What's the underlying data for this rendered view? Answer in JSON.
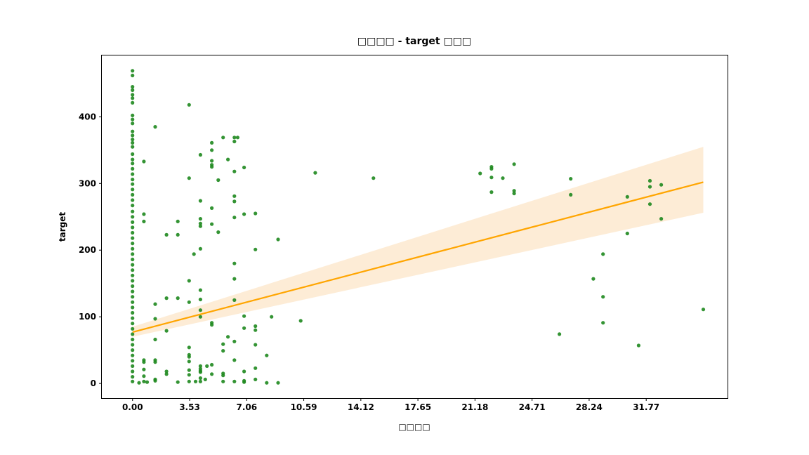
{
  "chart_data": {
    "type": "scatter",
    "title": "□□□□ - target □□□",
    "xlabel": "□□□□",
    "ylabel": "target",
    "xlim": [
      -1.9,
      36.8
    ],
    "ylim": [
      -22,
      492
    ],
    "x_ticks": [
      0.0,
      3.53,
      7.06,
      10.59,
      14.12,
      17.65,
      21.18,
      24.71,
      28.24,
      31.77
    ],
    "x_tick_labels": [
      "0.00",
      "3.53",
      "7.06",
      "10.59",
      "14.12",
      "17.65",
      "21.18",
      "24.71",
      "28.24",
      "31.77"
    ],
    "y_ticks": [
      0,
      100,
      200,
      300,
      400
    ],
    "y_tick_labels": [
      "0",
      "100",
      "200",
      "300",
      "400"
    ],
    "grid": false,
    "colors": {
      "points": "#1e881e",
      "regression_line": "#ffa500",
      "confidence_band": "#fde9cf"
    },
    "regression": {
      "x": [
        0.0,
        35.3
      ],
      "y": [
        77,
        302
      ],
      "ci_lower": [
        70,
        256
      ],
      "ci_upper": [
        85,
        355
      ]
    },
    "series": [
      {
        "points": [
          [
            0,
            469
          ],
          [
            0,
            462
          ],
          [
            0,
            445
          ],
          [
            0,
            440
          ],
          [
            0,
            433
          ],
          [
            0,
            428
          ],
          [
            0,
            421
          ],
          [
            0,
            402
          ],
          [
            0,
            396
          ],
          [
            0,
            390
          ],
          [
            0,
            378
          ],
          [
            0,
            372
          ],
          [
            0,
            366
          ],
          [
            0,
            361
          ],
          [
            0,
            355
          ],
          [
            0,
            344
          ],
          [
            0,
            336
          ],
          [
            0,
            330
          ],
          [
            0,
            322
          ],
          [
            0,
            314
          ],
          [
            0,
            306
          ],
          [
            0,
            299
          ],
          [
            0,
            291
          ],
          [
            0,
            283
          ],
          [
            0,
            275
          ],
          [
            0,
            267
          ],
          [
            0,
            258
          ],
          [
            0,
            250
          ],
          [
            0,
            242
          ],
          [
            0,
            234
          ],
          [
            0,
            226
          ],
          [
            0,
            218
          ],
          [
            0,
            210
          ],
          [
            0,
            202
          ],
          [
            0,
            194
          ],
          [
            0,
            186
          ],
          [
            0,
            178
          ],
          [
            0,
            170
          ],
          [
            0,
            162
          ],
          [
            0,
            154
          ],
          [
            0,
            146
          ],
          [
            0,
            138
          ],
          [
            0,
            130
          ],
          [
            0,
            122
          ],
          [
            0,
            114
          ],
          [
            0,
            106
          ],
          [
            0,
            98
          ],
          [
            0,
            90
          ],
          [
            0,
            82
          ],
          [
            0,
            74
          ],
          [
            0,
            66
          ],
          [
            0,
            58
          ],
          [
            0,
            50
          ],
          [
            0,
            42
          ],
          [
            0,
            34
          ],
          [
            0,
            26
          ],
          [
            0,
            18
          ],
          [
            0,
            10
          ],
          [
            0,
            3
          ],
          [
            0.4,
            1
          ],
          [
            0.7,
            333
          ],
          [
            0.7,
            254
          ],
          [
            0.7,
            243
          ],
          [
            0.7,
            35
          ],
          [
            0.7,
            32
          ],
          [
            0.7,
            21
          ],
          [
            0.7,
            11
          ],
          [
            0.7,
            3
          ],
          [
            0.9,
            2
          ],
          [
            1.4,
            385
          ],
          [
            1.4,
            119
          ],
          [
            1.4,
            97
          ],
          [
            1.4,
            66
          ],
          [
            1.4,
            35
          ],
          [
            1.4,
            32
          ],
          [
            1.4,
            6
          ],
          [
            1.4,
            4
          ],
          [
            2.1,
            223
          ],
          [
            2.1,
            128
          ],
          [
            2.1,
            79
          ],
          [
            2.1,
            18
          ],
          [
            2.1,
            14
          ],
          [
            2.8,
            243
          ],
          [
            2.8,
            223
          ],
          [
            2.8,
            128
          ],
          [
            2.8,
            2
          ],
          [
            3.5,
            418
          ],
          [
            3.5,
            308
          ],
          [
            3.5,
            154
          ],
          [
            3.5,
            122
          ],
          [
            3.5,
            54
          ],
          [
            3.5,
            43
          ],
          [
            3.5,
            40
          ],
          [
            3.5,
            33
          ],
          [
            3.5,
            20
          ],
          [
            3.5,
            13
          ],
          [
            3.5,
            3
          ],
          [
            3.8,
            194
          ],
          [
            3.9,
            3
          ],
          [
            4.2,
            343
          ],
          [
            4.2,
            274
          ],
          [
            4.2,
            247
          ],
          [
            4.2,
            240
          ],
          [
            4.2,
            236
          ],
          [
            4.2,
            202
          ],
          [
            4.2,
            140
          ],
          [
            4.2,
            126
          ],
          [
            4.2,
            110
          ],
          [
            4.2,
            100
          ],
          [
            4.2,
            26
          ],
          [
            4.2,
            22
          ],
          [
            4.2,
            19
          ],
          [
            4.2,
            17
          ],
          [
            4.2,
            8
          ],
          [
            4.2,
            3
          ],
          [
            4.5,
            6
          ],
          [
            4.6,
            26
          ],
          [
            4.9,
            361
          ],
          [
            4.9,
            350
          ],
          [
            4.9,
            334
          ],
          [
            4.9,
            328
          ],
          [
            4.9,
            325
          ],
          [
            4.9,
            263
          ],
          [
            4.9,
            239
          ],
          [
            4.9,
            91
          ],
          [
            4.9,
            88
          ],
          [
            4.9,
            28
          ],
          [
            4.9,
            14
          ],
          [
            5.3,
            305
          ],
          [
            5.3,
            227
          ],
          [
            5.6,
            369
          ],
          [
            5.6,
            59
          ],
          [
            5.6,
            49
          ],
          [
            5.6,
            15
          ],
          [
            5.6,
            12
          ],
          [
            5.6,
            3
          ],
          [
            5.9,
            336
          ],
          [
            5.9,
            70
          ],
          [
            6.3,
            369
          ],
          [
            6.3,
            363
          ],
          [
            6.3,
            318
          ],
          [
            6.3,
            281
          ],
          [
            6.3,
            273
          ],
          [
            6.3,
            249
          ],
          [
            6.3,
            180
          ],
          [
            6.3,
            157
          ],
          [
            6.3,
            125
          ],
          [
            6.3,
            63
          ],
          [
            6.3,
            35
          ],
          [
            6.3,
            3
          ],
          [
            6.5,
            369
          ],
          [
            6.9,
            324
          ],
          [
            6.9,
            254
          ],
          [
            6.9,
            101
          ],
          [
            6.9,
            83
          ],
          [
            6.9,
            18
          ],
          [
            6.9,
            4
          ],
          [
            6.9,
            2
          ],
          [
            7.6,
            255
          ],
          [
            7.6,
            201
          ],
          [
            7.6,
            86
          ],
          [
            7.6,
            80
          ],
          [
            7.6,
            58
          ],
          [
            7.6,
            23
          ],
          [
            7.6,
            6
          ],
          [
            8.3,
            42
          ],
          [
            8.3,
            1
          ],
          [
            8.6,
            100
          ],
          [
            9.0,
            216
          ],
          [
            9.0,
            1
          ],
          [
            10.4,
            94
          ],
          [
            11.3,
            316
          ],
          [
            14.9,
            308
          ],
          [
            21.5,
            315
          ],
          [
            22.2,
            325
          ],
          [
            22.2,
            322
          ],
          [
            22.2,
            309
          ],
          [
            22.2,
            287
          ],
          [
            22.9,
            308
          ],
          [
            23.6,
            329
          ],
          [
            23.6,
            289
          ],
          [
            23.6,
            285
          ],
          [
            26.4,
            74
          ],
          [
            27.1,
            307
          ],
          [
            27.1,
            283
          ],
          [
            28.5,
            157
          ],
          [
            29.1,
            194
          ],
          [
            29.1,
            130
          ],
          [
            29.1,
            91
          ],
          [
            30.6,
            280
          ],
          [
            30.6,
            225
          ],
          [
            31.3,
            57
          ],
          [
            32.0,
            304
          ],
          [
            32.0,
            295
          ],
          [
            32.0,
            269
          ],
          [
            32.7,
            298
          ],
          [
            32.7,
            247
          ],
          [
            35.3,
            111
          ]
        ]
      }
    ]
  }
}
